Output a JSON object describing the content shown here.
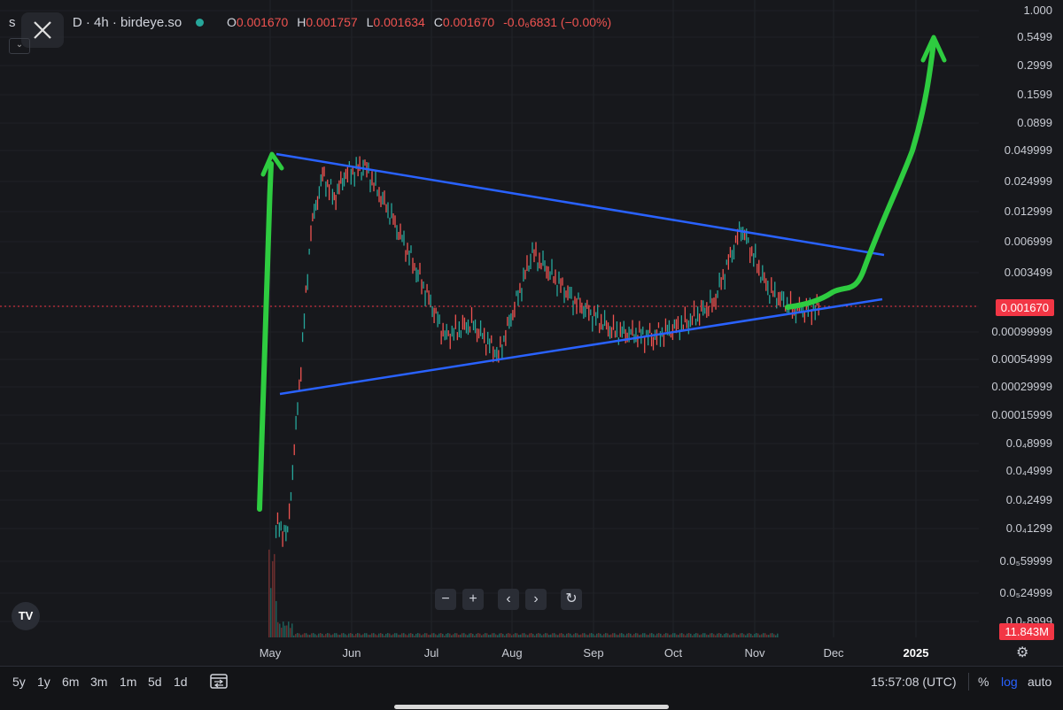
{
  "header": {
    "symbol_prefix": "s",
    "symbol_suffix": "D · 4h · birdeye.so",
    "ohlc": [
      {
        "k": "O",
        "v": "0.001670"
      },
      {
        "k": "H",
        "v": "0.001757"
      },
      {
        "k": "L",
        "v": "0.001634"
      },
      {
        "k": "C",
        "v": "0.001670"
      }
    ],
    "change": "-0.0₆6831 (−0.00%)"
  },
  "price_axis": {
    "labels": [
      "1.000",
      "0.5499",
      "0.2999",
      "0.1599",
      "0.0899",
      "0.049999",
      "0.024999",
      "0.012999",
      "0.006999",
      "0.003499",
      "0.001670",
      "0.00099999",
      "0.00054999",
      "0.00029999",
      "0.00015999",
      "0.0₄8999",
      "0.0₄4999",
      "0.0₄2499",
      "0.0₄1299",
      "0.0₅59999",
      "0.0₅24999",
      "0.0₅8999"
    ],
    "current_price_tag": "0.001670",
    "volume_tag": "11.843M"
  },
  "time_axis": {
    "labels": [
      "May",
      "Jun",
      "Jul",
      "Aug",
      "Sep",
      "Oct",
      "Nov",
      "Dec",
      "2025"
    ]
  },
  "nav_controls": [
    "−",
    "+",
    "‹",
    "›",
    "↻"
  ],
  "logo": "TV",
  "bottom_bar": {
    "ranges": [
      "5y",
      "1y",
      "6m",
      "3m",
      "1m",
      "5d",
      "1d"
    ],
    "time": "15:57:08 (UTC)",
    "percent": "%",
    "log": "log",
    "auto": "auto"
  },
  "colors": {
    "background": "#17181c",
    "trendline": "#2962ff",
    "annotation": "#2ecc40",
    "candle_up": "#26a69a",
    "candle_down": "#ef5350",
    "price_tag": "#f23645"
  },
  "icons": [
    "close-icon",
    "chevron-down-icon",
    "calendar-compare-icon",
    "gear-icon",
    "reset-icon"
  ],
  "chart_data": {
    "type": "line",
    "scale": "log",
    "interval": "4h",
    "x": [
      "May",
      "Jun",
      "Jul",
      "Aug",
      "Sep",
      "Oct",
      "Nov",
      "Dec",
      "2025"
    ],
    "ylim": [
      1e-06,
      1.0
    ],
    "price_path": [
      [
        "May",
        1.5e-05
      ],
      [
        "May",
        1.3e-05
      ],
      [
        "May",
        0.0003
      ],
      [
        "May",
        0.009
      ],
      [
        "May",
        0.03
      ],
      [
        "May",
        0.018
      ],
      [
        "May",
        0.03
      ],
      [
        "Jun",
        0.035
      ],
      [
        "Jun",
        0.012
      ],
      [
        "Jun",
        0.0035
      ],
      [
        "Jul",
        0.0009
      ],
      [
        "Jul",
        0.0012
      ],
      [
        "Jul",
        0.0006
      ],
      [
        "Aug",
        0.0055
      ],
      [
        "Aug",
        0.002
      ],
      [
        "Sep",
        0.001
      ],
      [
        "Sep",
        0.0009
      ],
      [
        "Oct",
        0.0012
      ],
      [
        "Oct",
        0.0019
      ],
      [
        "Oct",
        0.0095
      ],
      [
        "Nov",
        0.0025
      ],
      [
        "Nov",
        0.0016
      ],
      [
        "Nov",
        0.00167
      ]
    ],
    "upper_trendline": [
      [
        "May",
        0.045
      ],
      [
        "Dec",
        0.0055
      ]
    ],
    "lower_trendline": [
      [
        "May",
        0.00025
      ],
      [
        "Dec",
        0.002
      ]
    ],
    "current": 0.00167,
    "volume_last": "11.843M"
  }
}
